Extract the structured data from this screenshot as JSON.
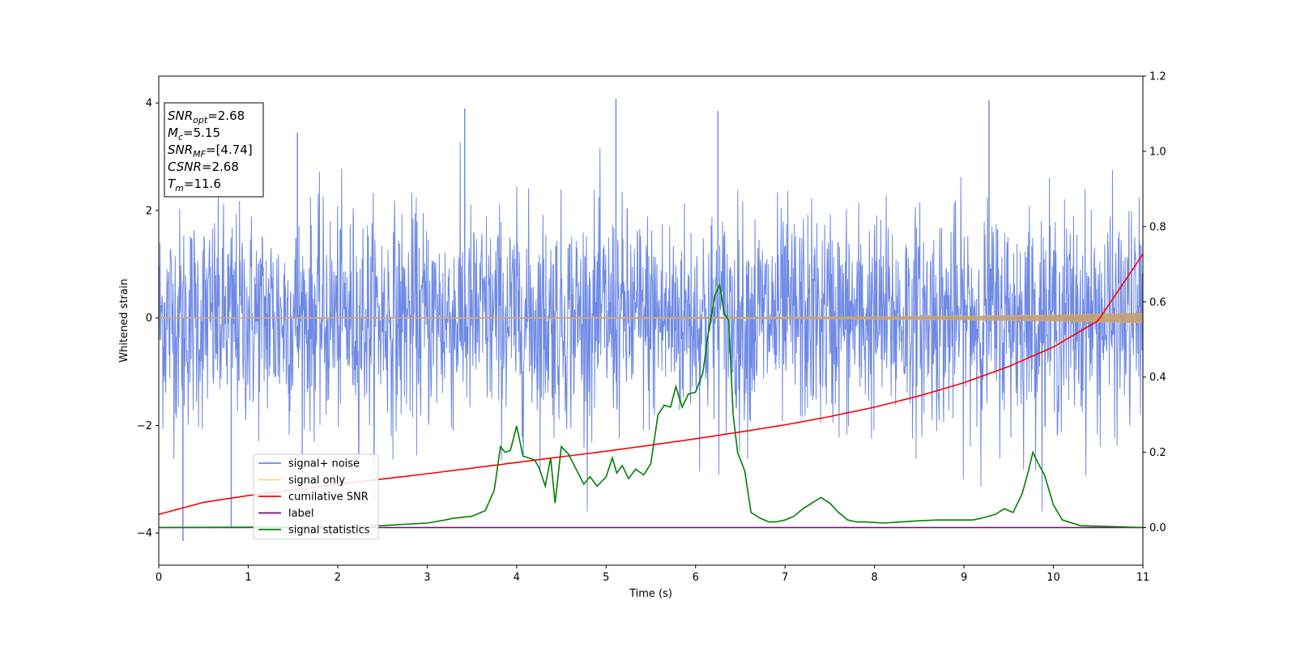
{
  "chart_data": {
    "type": "line",
    "xlabel": "Time (s)",
    "ylabel": "Whitened strain",
    "xlim": [
      0,
      11
    ],
    "ylim": [
      -4.6,
      4.5
    ],
    "y2lim": [
      -0.1,
      1.2
    ],
    "x_ticks": [
      "0",
      "1",
      "2",
      "3",
      "4",
      "5",
      "6",
      "7",
      "8",
      "9",
      "10",
      "11"
    ],
    "y_ticks": [
      "−4",
      "−2",
      "0",
      "2",
      "4"
    ],
    "y2_ticks": [
      "0.0",
      "0.2",
      "0.4",
      "0.6",
      "0.8",
      "1.0",
      "1.2"
    ],
    "grid": false,
    "legend_position": "lower-left",
    "stats_box": {
      "lines": [
        {
          "name": "SNR",
          "sub": "opt",
          "value": "=2.68"
        },
        {
          "name": "M",
          "sub": "c",
          "value": "=5.15"
        },
        {
          "name": "SNR",
          "sub": "MF",
          "value": "=[4.74]"
        },
        {
          "name": "CSNR",
          "sub": "",
          "value": "=2.68"
        },
        {
          "name": "T",
          "sub": "m",
          "value": "=11.6"
        }
      ]
    },
    "series": [
      {
        "name": "signal+ noise",
        "color": "#6f8ae6",
        "axis": "left",
        "noise_amplitude_std": 1.0,
        "peaks": [
          [
            0.27,
            -4.15
          ],
          [
            0.81,
            -3.9
          ],
          [
            3.42,
            3.9
          ],
          [
            5.11,
            4.08
          ],
          [
            9.28,
            4.05
          ],
          [
            1.55,
            3.45
          ],
          [
            6.25,
            3.85
          ]
        ]
      },
      {
        "name": "signal only",
        "color": "#ffd580",
        "axis": "left",
        "x": [
          0,
          2,
          4,
          6,
          7,
          8,
          9,
          10,
          11
        ],
        "y_amplitude": [
          0.005,
          0.006,
          0.008,
          0.012,
          0.016,
          0.022,
          0.035,
          0.055,
          0.09
        ]
      },
      {
        "name": "cumilative SNR",
        "color": "#ff0000",
        "axis": "right",
        "x": [
          0,
          0.5,
          1,
          1.5,
          2,
          2.5,
          3,
          3.5,
          4,
          4.5,
          5,
          5.5,
          6,
          6.5,
          7,
          7.5,
          8,
          8.5,
          9,
          9.5,
          10,
          10.5,
          11
        ],
        "y": [
          0.035,
          0.067,
          0.085,
          0.1,
          0.115,
          0.129,
          0.143,
          0.158,
          0.173,
          0.188,
          0.203,
          0.219,
          0.236,
          0.254,
          0.273,
          0.295,
          0.32,
          0.35,
          0.385,
          0.428,
          0.48,
          0.55,
          0.727
        ]
      },
      {
        "name": "label",
        "color": "#800080",
        "axis": "right",
        "x": [
          0,
          11
        ],
        "y": [
          0.0,
          0.0
        ]
      },
      {
        "name": "signal statistics",
        "color": "#008000",
        "axis": "right",
        "x": [
          0,
          2,
          2.5,
          2.7,
          3,
          3.2,
          3.3,
          3.5,
          3.65,
          3.75,
          3.82,
          3.87,
          3.93,
          4.0,
          4.07,
          4.2,
          4.25,
          4.32,
          4.38,
          4.43,
          4.5,
          4.58,
          4.75,
          4.82,
          4.9,
          5.0,
          5.07,
          5.12,
          5.18,
          5.25,
          5.33,
          5.42,
          5.5,
          5.58,
          5.65,
          5.72,
          5.78,
          5.85,
          5.92,
          6.0,
          6.08,
          6.15,
          6.22,
          6.27,
          6.32,
          6.37,
          6.42,
          6.47,
          6.55,
          6.62,
          6.72,
          6.82,
          6.9,
          7.0,
          7.1,
          7.2,
          7.3,
          7.4,
          7.5,
          7.6,
          7.7,
          7.8,
          7.9,
          8.1,
          8.3,
          8.5,
          8.7,
          8.9,
          9.1,
          9.2,
          9.35,
          9.45,
          9.55,
          9.65,
          9.72,
          9.77,
          9.82,
          9.9,
          10.0,
          10.1,
          10.3,
          11.0
        ],
        "y": [
          0.0,
          0.002,
          0.005,
          0.008,
          0.012,
          0.02,
          0.025,
          0.03,
          0.045,
          0.1,
          0.215,
          0.2,
          0.205,
          0.27,
          0.19,
          0.18,
          0.16,
          0.11,
          0.185,
          0.065,
          0.215,
          0.195,
          0.115,
          0.135,
          0.11,
          0.135,
          0.185,
          0.145,
          0.165,
          0.13,
          0.155,
          0.14,
          0.17,
          0.3,
          0.325,
          0.32,
          0.375,
          0.32,
          0.355,
          0.36,
          0.41,
          0.53,
          0.62,
          0.645,
          0.57,
          0.55,
          0.3,
          0.2,
          0.15,
          0.04,
          0.025,
          0.015,
          0.015,
          0.02,
          0.03,
          0.05,
          0.065,
          0.08,
          0.065,
          0.04,
          0.02,
          0.015,
          0.015,
          0.012,
          0.015,
          0.018,
          0.02,
          0.02,
          0.02,
          0.025,
          0.035,
          0.05,
          0.04,
          0.09,
          0.15,
          0.2,
          0.175,
          0.14,
          0.06,
          0.02,
          0.005,
          0.0
        ]
      }
    ],
    "legend": [
      "signal+ noise",
      "signal only",
      "cumilative SNR",
      "label",
      "signal statistics"
    ]
  }
}
